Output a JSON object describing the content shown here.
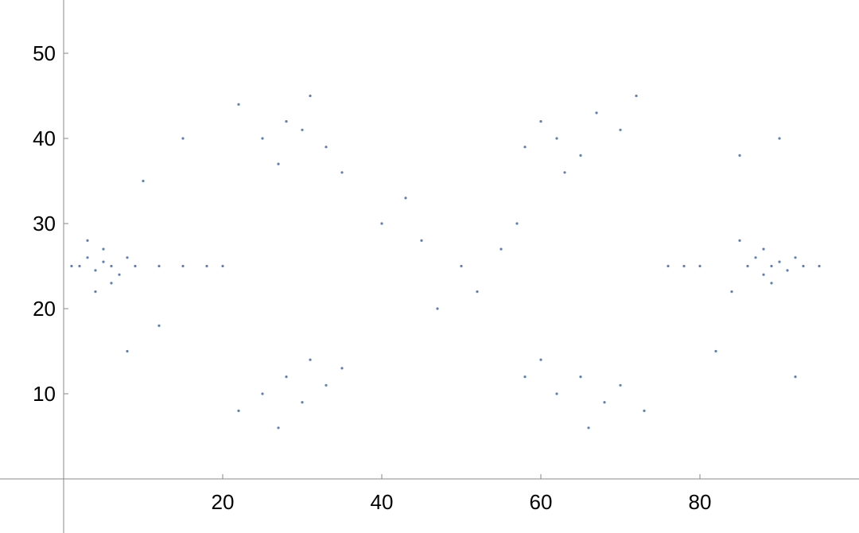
{
  "chart_data": {
    "type": "scatter",
    "title": "",
    "xlabel": "",
    "ylabel": "",
    "xlim": [
      -8,
      100
    ],
    "ylim": [
      -6,
      56
    ],
    "x_ticks": [
      20,
      40,
      60,
      80
    ],
    "y_ticks": [
      10,
      20,
      30,
      40,
      50
    ],
    "x_tick_labels": [
      "20",
      "40",
      "60",
      "80"
    ],
    "y_tick_labels": [
      "10",
      "20",
      "30",
      "40",
      "50"
    ],
    "grid": false,
    "legend": "none",
    "point_color": "#5E81B5",
    "series": [
      {
        "points": [
          [
            2,
            25
          ],
          [
            3,
            26
          ],
          [
            4,
            24.5
          ],
          [
            5,
            25.5
          ],
          [
            6,
            25
          ],
          [
            7,
            24
          ],
          [
            8,
            26
          ],
          [
            5,
            27
          ],
          [
            6,
            23
          ],
          [
            3,
            28
          ],
          [
            4,
            22
          ],
          [
            1,
            25
          ],
          [
            9,
            25
          ],
          [
            12,
            25
          ],
          [
            15,
            25
          ],
          [
            18,
            25
          ],
          [
            20,
            25
          ],
          [
            86,
            25
          ],
          [
            87,
            26
          ],
          [
            88,
            24
          ],
          [
            89,
            25
          ],
          [
            90,
            25.5
          ],
          [
            91,
            24.5
          ],
          [
            92,
            26
          ],
          [
            88,
            27
          ],
          [
            89,
            23
          ],
          [
            93,
            25
          ],
          [
            95,
            25
          ],
          [
            85,
            28
          ],
          [
            84,
            22
          ],
          [
            80,
            25
          ],
          [
            76,
            25
          ],
          [
            78,
            25
          ],
          [
            25,
            40
          ],
          [
            28,
            42
          ],
          [
            30,
            41
          ],
          [
            33,
            39
          ],
          [
            27,
            37
          ],
          [
            35,
            36
          ],
          [
            22,
            44
          ],
          [
            31,
            45
          ],
          [
            60,
            42
          ],
          [
            62,
            40
          ],
          [
            65,
            38
          ],
          [
            67,
            43
          ],
          [
            58,
            39
          ],
          [
            63,
            36
          ],
          [
            70,
            41
          ],
          [
            72,
            45
          ],
          [
            25,
            10
          ],
          [
            28,
            12
          ],
          [
            30,
            9
          ],
          [
            33,
            11
          ],
          [
            22,
            8
          ],
          [
            35,
            13
          ],
          [
            27,
            6
          ],
          [
            31,
            14
          ],
          [
            62,
            10
          ],
          [
            65,
            12
          ],
          [
            68,
            9
          ],
          [
            60,
            14
          ],
          [
            70,
            11
          ],
          [
            66,
            6
          ],
          [
            73,
            8
          ],
          [
            58,
            12
          ],
          [
            40,
            30
          ],
          [
            45,
            28
          ],
          [
            50,
            25
          ],
          [
            55,
            27
          ],
          [
            52,
            22
          ],
          [
            47,
            20
          ],
          [
            43,
            33
          ],
          [
            57,
            30
          ],
          [
            10,
            35
          ],
          [
            12,
            18
          ],
          [
            15,
            40
          ],
          [
            8,
            15
          ],
          [
            85,
            38
          ],
          [
            82,
            15
          ],
          [
            90,
            40
          ],
          [
            92,
            12
          ]
        ]
      }
    ]
  }
}
